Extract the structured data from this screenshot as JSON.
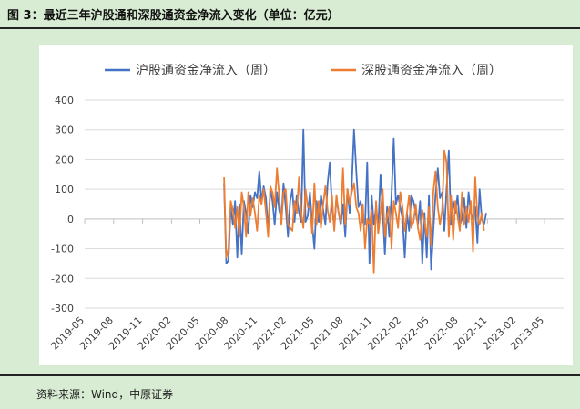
{
  "figure_title": "图 3：最近三年沪股通和深股通资金净流入变化（单位：亿元）",
  "source_note": "资料来源：Wind，中原证券",
  "colors": {
    "background": "#d7ecd2",
    "panel": "#ffffff",
    "series_sh": "#4472c4",
    "series_sz": "#ed7d31",
    "grid": "#d9d9d9"
  },
  "chart_data": {
    "type": "line",
    "title": "",
    "xlabel": "",
    "ylabel": "",
    "ylim": [
      -300,
      400
    ],
    "yticks": [
      400,
      300,
      200,
      100,
      0,
      -100,
      -200,
      -300
    ],
    "grid": "horizontal",
    "legend_position": "top",
    "xticks": [
      "2019-05",
      "2019-08",
      "2019-11",
      "2020-02",
      "2020-05",
      "2020-08",
      "2020-11",
      "2021-02",
      "2021-05",
      "2021-08",
      "2021-11",
      "2022-02",
      "2022-05",
      "2022-08",
      "2022-11",
      "2023-02",
      "2023-05"
    ],
    "xtick_start": "2019-05-01",
    "xtick_interval_months": 3,
    "series": [
      {
        "name": "沪股通资金净流入（周）",
        "color": "#4472c4",
        "start": "2020-07-17",
        "interval_days": 7,
        "values": [
          120,
          -150,
          -140,
          40,
          -20,
          60,
          -130,
          50,
          -120,
          60,
          20,
          -50,
          80,
          40,
          90,
          70,
          160,
          60,
          110,
          70,
          -40,
          100,
          60,
          -20,
          90,
          30,
          0,
          120,
          40,
          -60,
          60,
          100,
          -10,
          80,
          20,
          -10,
          300,
          -10,
          10,
          90,
          -20,
          -100,
          60,
          -10,
          80,
          30,
          -20,
          120,
          190,
          40,
          -30,
          70,
          20,
          -20,
          50,
          -60,
          100,
          20,
          120,
          300,
          160,
          40,
          60,
          -10,
          -20,
          190,
          -150,
          80,
          -20,
          40,
          -30,
          150,
          30,
          -120,
          40,
          -60,
          80,
          270,
          50,
          80,
          40,
          0,
          -130,
          20,
          -40,
          80,
          60,
          20,
          -20,
          60,
          -150,
          20,
          -130,
          80,
          -170,
          -40,
          80,
          170,
          70,
          90,
          -40,
          100,
          230,
          -20,
          60,
          20,
          80,
          -20,
          0,
          70,
          -30,
          90,
          20,
          0,
          40,
          -80,
          100,
          0,
          -20,
          20
        ]
      },
      {
        "name": "深股通资金净流入（周）",
        "color": "#ed7d31",
        "start": "2020-07-17",
        "interval_days": 7,
        "values": [
          140,
          -130,
          -100,
          60,
          30,
          -30,
          40,
          -60,
          90,
          40,
          -60,
          90,
          10,
          70,
          20,
          -40,
          80,
          50,
          100,
          20,
          -60,
          110,
          90,
          40,
          170,
          80,
          -20,
          90,
          100,
          -20,
          -30,
          -40,
          60,
          20,
          140,
          20,
          -30,
          100,
          40,
          40,
          -50,
          120,
          -20,
          60,
          -30,
          50,
          110,
          30,
          -10,
          80,
          -40,
          80,
          20,
          -10,
          170,
          -20,
          100,
          50,
          90,
          120,
          40,
          20,
          -40,
          50,
          -100,
          0,
          -20,
          30,
          -180,
          60,
          -50,
          20,
          100,
          -60,
          10,
          40,
          -100,
          60,
          20,
          -30,
          90,
          40,
          -40,
          20,
          80,
          -30,
          -10,
          50,
          -30,
          -70,
          30,
          -10,
          -60,
          40,
          -90,
          90,
          160,
          40,
          -20,
          30,
          230,
          190,
          -60,
          80,
          -70,
          60,
          10,
          -40,
          90,
          -20,
          40,
          -10,
          60,
          -110,
          140,
          10,
          -20,
          20,
          -40
        ]
      }
    ]
  }
}
